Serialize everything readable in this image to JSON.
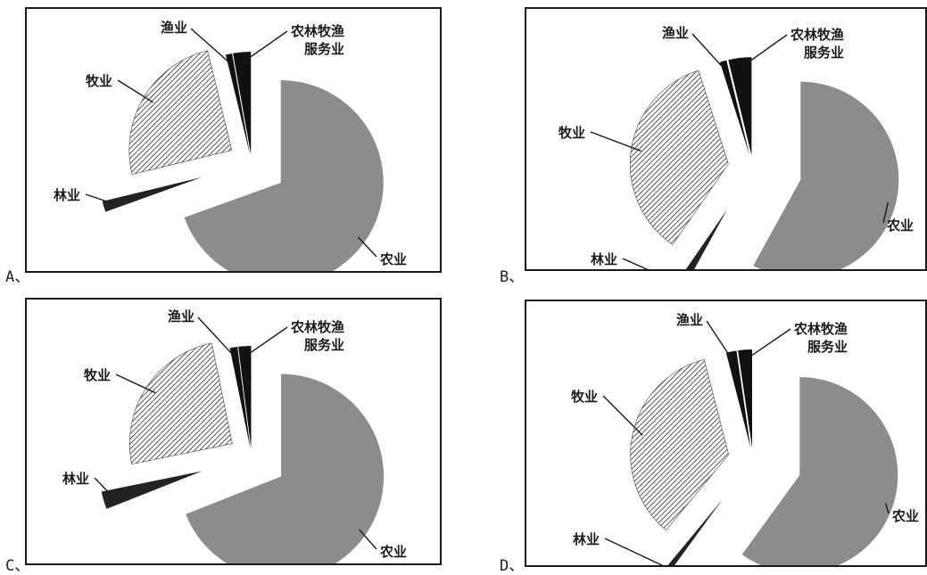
{
  "colors": {
    "agriculture": "#8c8c8c",
    "service": "#111111",
    "fishery": "#111111",
    "forestry": "#222222",
    "hatch": "#555555"
  },
  "labels": {
    "fishery": "渔业",
    "service_line1": "农林牧渔",
    "service_line2": "服务业",
    "livestock": "牧业",
    "forestry": "林业",
    "agriculture": "农业"
  },
  "chart_data": [
    {
      "option": "A、",
      "type": "pie",
      "categories": [
        "农业",
        "林业",
        "牧业",
        "渔业",
        "农林牧渔服务业"
      ],
      "values": [
        69.5,
        1.7,
        25.0,
        1.0,
        2.8
      ]
    },
    {
      "option": "B、",
      "type": "pie",
      "categories": [
        "农业",
        "林业",
        "牧业",
        "渔业",
        "农林牧渔服务业"
      ],
      "values": [
        58.0,
        1.6,
        35.5,
        1.1,
        3.8
      ]
    },
    {
      "option": "C、",
      "type": "pie",
      "categories": [
        "农业",
        "林业",
        "牧业",
        "渔业",
        "农林牧渔服务业"
      ],
      "values": [
        69.0,
        2.8,
        25.0,
        1.2,
        2.0
      ]
    },
    {
      "option": "D、",
      "type": "pie",
      "categories": [
        "农业",
        "林业",
        "牧业",
        "渔业",
        "农林牧渔服务业"
      ],
      "values": [
        60.0,
        1.0,
        35.0,
        1.7,
        2.3
      ]
    }
  ]
}
